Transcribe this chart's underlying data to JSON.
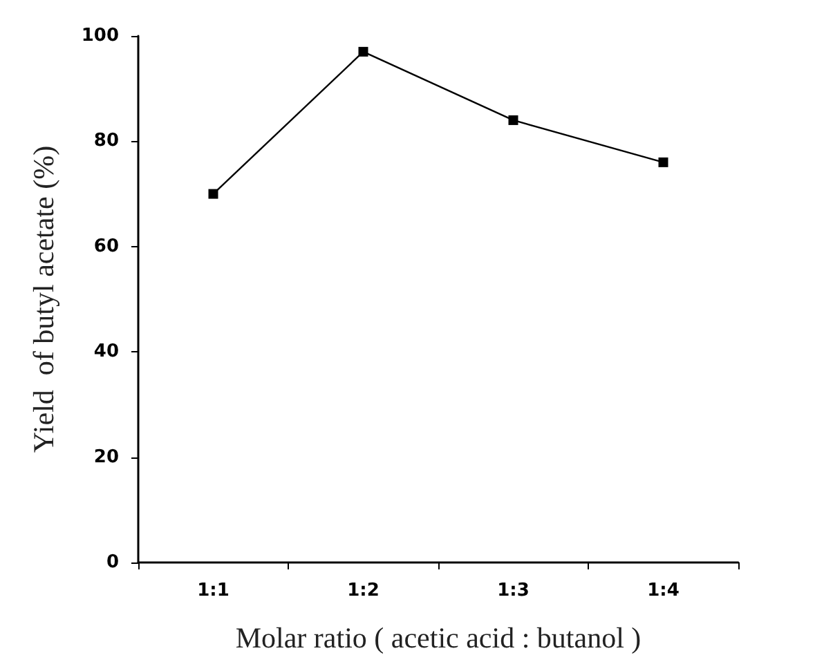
{
  "chart_data": {
    "type": "line",
    "xlabel": "Molar ratio ( acetic acid : butanol )",
    "ylabel": "Yield  of butyl acetate (%)",
    "categories": [
      "1:1",
      "1:2",
      "1:3",
      "1:4"
    ],
    "series": [
      {
        "color": "#000000",
        "values": [
          70,
          97,
          84,
          76
        ]
      }
    ],
    "ylim": [
      0,
      100
    ],
    "yticks": [
      0,
      20,
      40,
      60,
      80,
      100
    ],
    "grid": false,
    "marker": "square",
    "line_style": "solid"
  }
}
